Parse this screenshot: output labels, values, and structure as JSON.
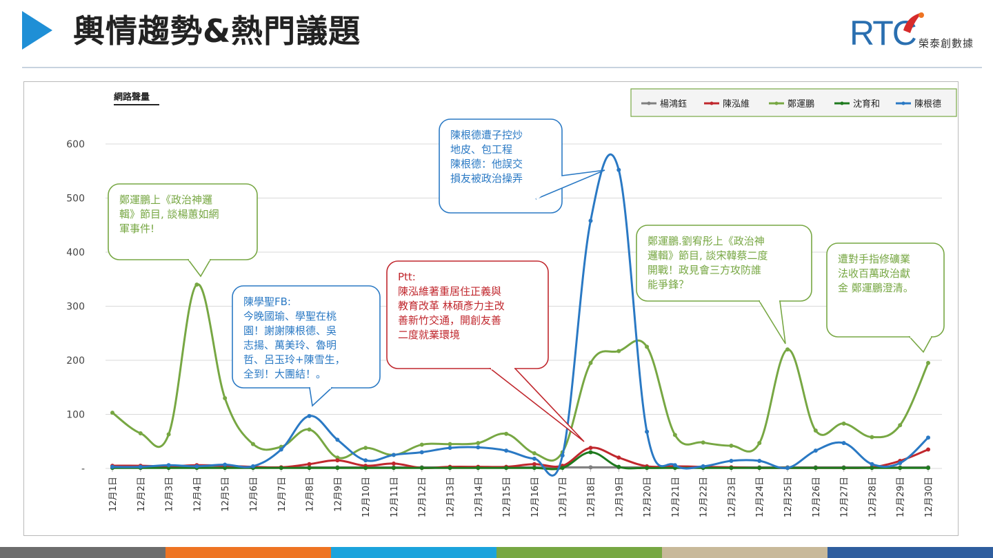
{
  "header": {
    "title": "輿情趨勢&熱門議題",
    "logo_mark": "RTC",
    "logo_company": "榮泰創數據"
  },
  "bottom_bar_colors": [
    "#6d6d6d",
    "#ee7423",
    "#1ba3dc",
    "#77a743",
    "#c8b99a",
    "#2f5e9e"
  ],
  "chart_data": {
    "type": "line",
    "title": "網路聲量",
    "xlabel": "",
    "ylabel": "",
    "ylim": [
      0,
      600
    ],
    "yticks": [
      0,
      100,
      200,
      300,
      400,
      500,
      600
    ],
    "ytick_labels": [
      "-",
      "100",
      "200",
      "300",
      "400",
      "500",
      "600"
    ],
    "legend_position": "top-right",
    "categories": [
      "12月1日",
      "12月2日",
      "12月3日",
      "12月4日",
      "12月5日",
      "12月6日",
      "12月7日",
      "12月8日",
      "12月9日",
      "12月10日",
      "12月11日",
      "12月12日",
      "12月13日",
      "12月14日",
      "12月15日",
      "12月16日",
      "12月17日",
      "12月18日",
      "12月19日",
      "12月20日",
      "12月21日",
      "12月22日",
      "12月23日",
      "12月24日",
      "12月25日",
      "12月26日",
      "12月27日",
      "12月28日",
      "12月29日",
      "12月30日"
    ],
    "series": [
      {
        "name": "楊鴻鈺",
        "color": "#7f7f7f",
        "values": [
          2,
          2,
          2,
          2,
          2,
          2,
          2,
          2,
          2,
          2,
          2,
          2,
          2,
          2,
          2,
          2,
          2,
          2,
          2,
          2,
          2,
          2,
          2,
          2,
          2,
          2,
          2,
          2,
          2,
          2
        ]
      },
      {
        "name": "陳泓維",
        "color": "#c0272d",
        "values": [
          5,
          5,
          4,
          6,
          5,
          3,
          2,
          8,
          15,
          5,
          9,
          1,
          3,
          3,
          3,
          8,
          5,
          38,
          20,
          4,
          4,
          3,
          2,
          1,
          1,
          1,
          1,
          2,
          14,
          35
        ]
      },
      {
        "name": "鄭運鵬",
        "color": "#77a743",
        "values": [
          103,
          65,
          63,
          340,
          130,
          45,
          40,
          72,
          20,
          38,
          25,
          44,
          45,
          47,
          64,
          28,
          30,
          195,
          217,
          225,
          62,
          48,
          42,
          47,
          220,
          70,
          83,
          58,
          80,
          195
        ]
      },
      {
        "name": "沈育和",
        "color": "#1e7a1e",
        "values": [
          1,
          1,
          1,
          1,
          1,
          1,
          1,
          1,
          1,
          1,
          1,
          1,
          1,
          1,
          1,
          1,
          1,
          30,
          3,
          1,
          1,
          1,
          1,
          1,
          1,
          1,
          1,
          1,
          1,
          1
        ]
      },
      {
        "name": "陳根德",
        "color": "#2a79c4",
        "values": [
          3,
          3,
          6,
          4,
          7,
          4,
          35,
          97,
          53,
          15,
          25,
          30,
          38,
          39,
          33,
          18,
          24,
          458,
          552,
          68,
          6,
          4,
          14,
          14,
          1,
          33,
          47,
          8,
          10,
          57
        ]
      }
    ],
    "annotations": [
      {
        "id": "ann-1",
        "color": "#77a743",
        "lines": [
          "鄭運鵬上《政治神邏",
          "輯》節目, 談楊蕙如網",
          "軍事件!"
        ]
      },
      {
        "id": "ann-2",
        "color": "#2a79c4",
        "lines": [
          "陳學聖FB:",
          "今晚國瑜、學聖在桃",
          "園！謝謝陳根德、吳",
          "志揚、萬美玲、魯明",
          "哲、呂玉玲+陳雪生，",
          "全到！大團結！。"
        ]
      },
      {
        "id": "ann-3",
        "color": "#c0272d",
        "lines": [
          "Ptt:",
          "陳泓維著重居住正義與",
          "教育改革 林碩彥力主改",
          "善新竹交通，開創友善",
          "二度就業環境"
        ]
      },
      {
        "id": "ann-4",
        "color": "#2a79c4",
        "lines": [
          "陳根德遭子控炒",
          "地皮、包工程",
          "陳根德：他誤交",
          "損友被政治操弄"
        ]
      },
      {
        "id": "ann-5",
        "color": "#77a743",
        "lines": [
          "鄭運鵬.劉宥彤上《政治神",
          "邏輯》節目, 談宋韓蔡二度",
          "開戰！政見會三方攻防誰",
          "能爭鋒？"
        ]
      },
      {
        "id": "ann-6",
        "color": "#77a743",
        "lines": [
          "遭對手指修礦業",
          "法收百萬政治獻",
          "金 鄭運鵬澄清。"
        ]
      }
    ]
  }
}
